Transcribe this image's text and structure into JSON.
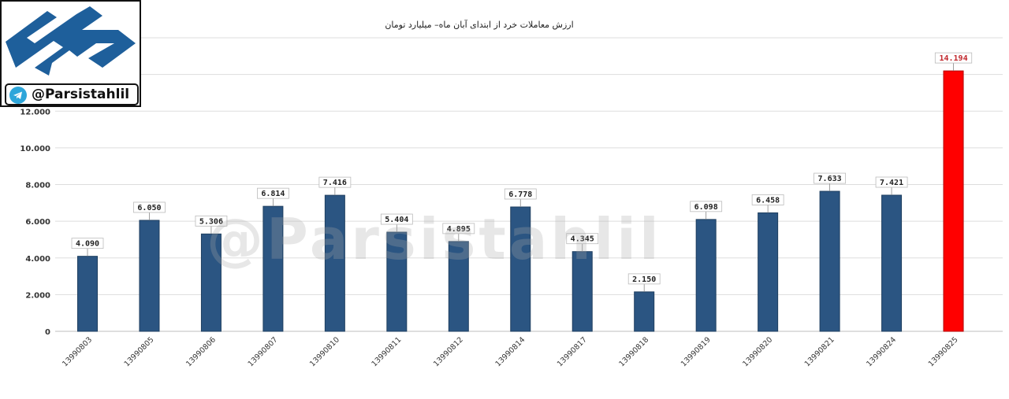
{
  "chart_data": {
    "type": "bar",
    "title": "ارزش معاملات خرد از ابتدای آبان ماه– میلیارد تومان",
    "categories": [
      "13990803",
      "13990805",
      "13990806",
      "13990807",
      "13990810",
      "13990811",
      "13990812",
      "13990814",
      "13990817",
      "13990818",
      "13990819",
      "13990820",
      "13990821",
      "13990824",
      "13990825"
    ],
    "values": [
      4.09,
      6.05,
      5.306,
      6.814,
      7.416,
      5.404,
      4.895,
      6.778,
      4.345,
      2.15,
      6.098,
      6.458,
      7.633,
      7.421,
      14.194
    ],
    "value_labels": [
      "4.090",
      "6.050",
      "5.306",
      "6.814",
      "7.416",
      "5.404",
      "4.895",
      "6.778",
      "4.345",
      "2.150",
      "6.098",
      "6.458",
      "7.633",
      "7.421",
      "14.194"
    ],
    "yticks": [
      "0",
      "2.000",
      "4.000",
      "6.000",
      "8.000",
      "10.000",
      "12.000"
    ],
    "ylim": [
      0,
      16
    ],
    "grid": true,
    "colors": {
      "bar": "#2b5582",
      "highlight": "#ff0000",
      "highlight_label": "#c0282d"
    },
    "highlight_index": 14
  },
  "branding": {
    "handle": "@Parsistahlil",
    "watermark": "@Parsistahlil",
    "logo_icon": "parsistahlil-logo-icon",
    "telegram_icon": "telegram-icon"
  }
}
